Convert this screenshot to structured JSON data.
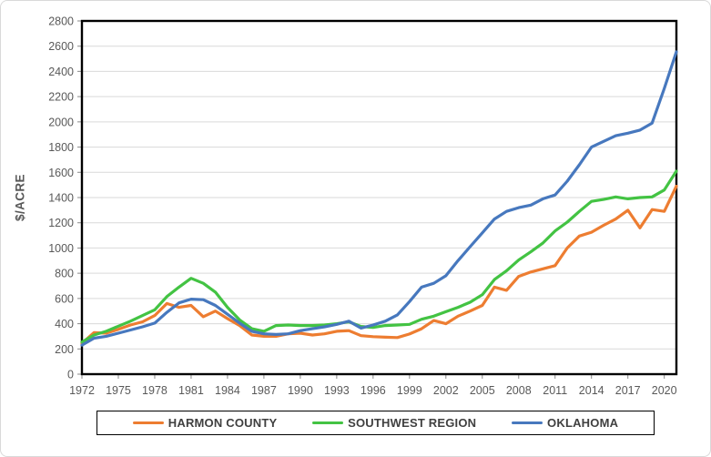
{
  "chart_data": {
    "type": "line",
    "title": "",
    "xlabel": "",
    "ylabel": "$/ACRE",
    "xlim": [
      1972,
      2021
    ],
    "ylim": [
      0,
      2800
    ],
    "grid": "horizontal",
    "legend_position": "bottom",
    "x_ticks": [
      1972,
      1975,
      1978,
      1981,
      1984,
      1987,
      1990,
      1993,
      1996,
      1999,
      2002,
      2005,
      2008,
      2011,
      2014,
      2017,
      2020
    ],
    "y_ticks": [
      0,
      200,
      400,
      600,
      800,
      1000,
      1200,
      1400,
      1600,
      1800,
      2000,
      2200,
      2400,
      2600,
      2800
    ],
    "x_years": "annual points from 1972 to 2021",
    "series": [
      {
        "name": "HARMON COUNTY",
        "color": "#ED7D31",
        "values": [
          245,
          330,
          325,
          355,
          390,
          415,
          465,
          560,
          530,
          545,
          455,
          500,
          440,
          385,
          310,
          300,
          300,
          320,
          325,
          310,
          320,
          340,
          345,
          305,
          297,
          293,
          290,
          318,
          360,
          425,
          400,
          460,
          500,
          545,
          690,
          665,
          775,
          810,
          835,
          860,
          1000,
          1095,
          1125,
          1180,
          1230,
          1300,
          1160,
          1305,
          1290,
          1490
        ]
      },
      {
        "name": "SOUTHWEST REGION",
        "color": "#43C343",
        "values": [
          255,
          310,
          340,
          380,
          420,
          465,
          510,
          615,
          690,
          760,
          720,
          650,
          530,
          430,
          360,
          340,
          385,
          390,
          385,
          385,
          390,
          400,
          415,
          378,
          370,
          385,
          390,
          395,
          435,
          460,
          495,
          530,
          570,
          630,
          750,
          820,
          905,
          970,
          1040,
          1135,
          1205,
          1290,
          1370,
          1385,
          1405,
          1390,
          1400,
          1405,
          1460,
          1610
        ]
      },
      {
        "name": "OKLAHOMA",
        "color": "#4778BE",
        "values": [
          230,
          285,
          300,
          325,
          350,
          375,
          405,
          490,
          565,
          595,
          590,
          545,
          475,
          405,
          340,
          320,
          315,
          320,
          345,
          360,
          375,
          395,
          420,
          365,
          390,
          420,
          470,
          575,
          690,
          720,
          780,
          900,
          1010,
          1120,
          1230,
          1290,
          1320,
          1340,
          1390,
          1420,
          1530,
          1660,
          1800,
          1845,
          1890,
          1910,
          1935,
          1990,
          2265,
          2555
        ]
      }
    ],
    "axis_color": "#000000",
    "gridline_color": "#D9D9D9",
    "tick_label_color": "#595959"
  }
}
